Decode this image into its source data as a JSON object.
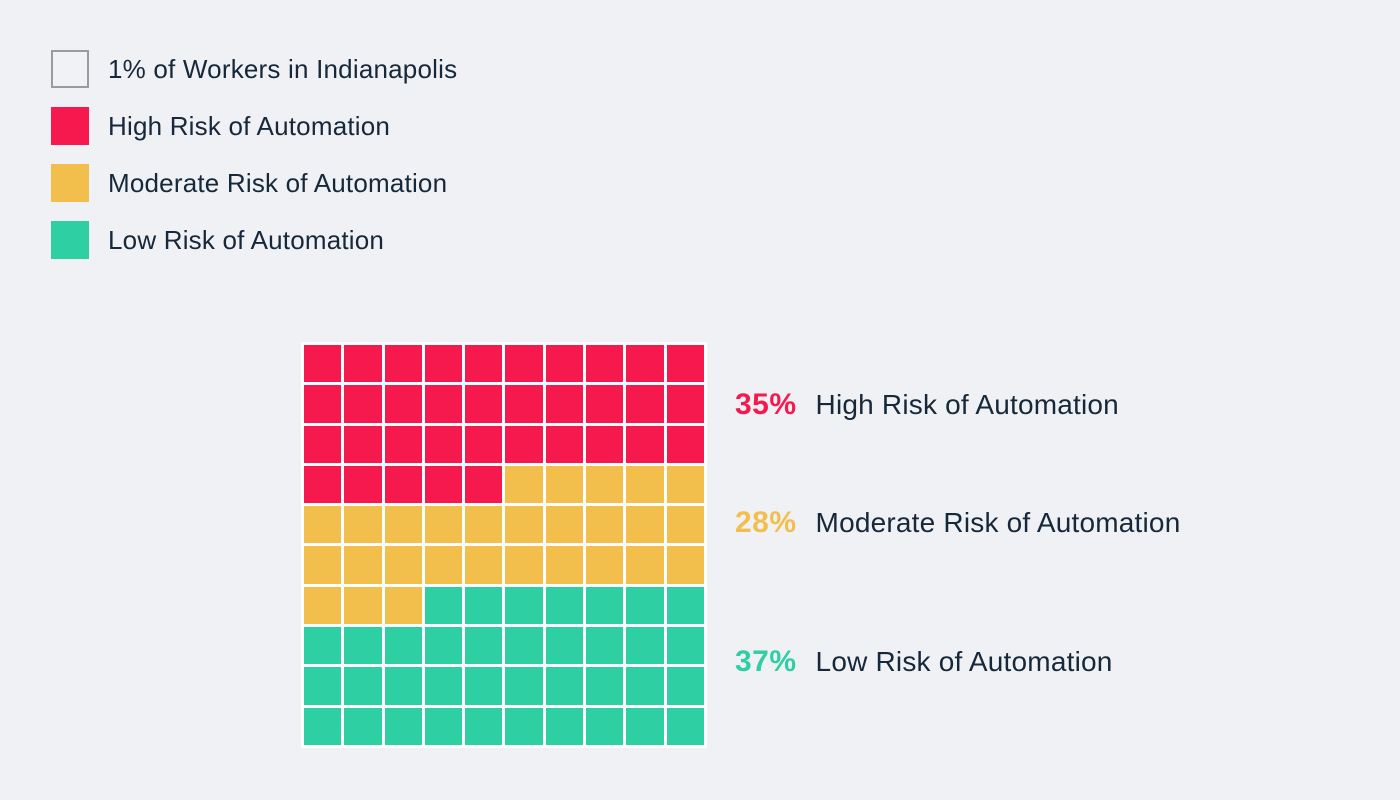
{
  "page": {
    "background_color": "#EFF1F4",
    "text_color": "#16283A"
  },
  "legend": {
    "items": [
      {
        "id": "unit",
        "label": "1% of Workers in Indianapolis",
        "color": "#F1F2F5",
        "border_color": "#9B9B9F"
      },
      {
        "id": "high",
        "label": "High Risk of Automation",
        "color": "#F5194E",
        "border_color": ""
      },
      {
        "id": "moderate",
        "label": "Moderate Risk of Automation",
        "color": "#F2BF4D",
        "border_color": ""
      },
      {
        "id": "low",
        "label": "Low Risk of Automation",
        "color": "#2FCFA4",
        "border_color": ""
      }
    ]
  },
  "stats": [
    {
      "id": "high",
      "value": "35%",
      "label": "High Risk of Automation",
      "color": "#F5194E"
    },
    {
      "id": "moderate",
      "value": "28%",
      "label": "Moderate Risk of Automation",
      "color": "#F2BF4D"
    },
    {
      "id": "low",
      "value": "37%",
      "label": "Low Risk of Automation",
      "color": "#2FCFA4"
    }
  ],
  "chart_data": {
    "type": "waffle",
    "title": "",
    "unit_label": "1% of Workers in Indianapolis",
    "grid": {
      "rows": 10,
      "cols": 10,
      "fill_order": "left-to-right, top-to-bottom",
      "cell_gap_color": "#FFFFFF"
    },
    "series": [
      {
        "name": "High Risk of Automation",
        "value": 35,
        "percent_label": "35%",
        "color": "#F5194E"
      },
      {
        "name": "Moderate Risk of Automation",
        "value": 28,
        "percent_label": "28%",
        "color": "#F2BF4D"
      },
      {
        "name": "Low Risk of Automation",
        "value": 37,
        "percent_label": "37%",
        "color": "#2FCFA4"
      }
    ],
    "row_pattern": [
      "HHHHHHHHHH",
      "HHHHHHHHHH",
      "HHHHHHHHHH",
      "HHHHHMMMMM",
      "MMMMMMMMMM",
      "MMMMMMMMMM",
      "MMMLLLLLLL",
      "LLLLLLLLLL",
      "LLLLLLLLLL",
      "LLLLLLLLLL"
    ],
    "legend_position": "top-left",
    "labels_position": "right"
  }
}
